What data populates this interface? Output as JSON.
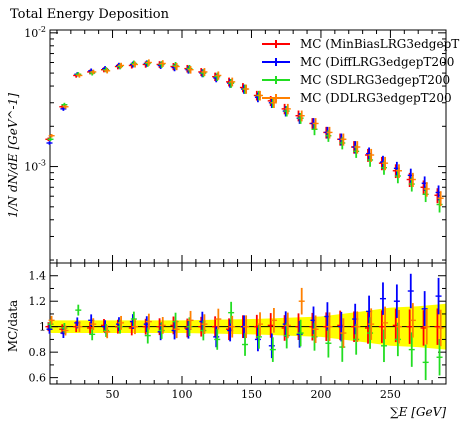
{
  "chart_data": [
    {
      "panel": "main",
      "type": "scatter",
      "title": "Total Energy Deposition",
      "ylabel": "1/N dN/dE [GeV^-1]",
      "yscale": "log",
      "xlim": [
        5,
        290
      ],
      "ylim": [
        0.00019,
        0.0105
      ],
      "y_ticks": [
        {
          "value": 0.01,
          "label": "10^-2"
        },
        {
          "value": 0.001,
          "label": "10^-3"
        }
      ],
      "legend_position": "top-right",
      "series": [
        {
          "name": "MC (MinBiasLRG3edgepT",
          "color": "#ff0000",
          "x": [
            5,
            15,
            25,
            35,
            45,
            55,
            65,
            75,
            85,
            95,
            105,
            115,
            125,
            135,
            145,
            155,
            165,
            175,
            185,
            195,
            205,
            215,
            225,
            235,
            245,
            255,
            265,
            275,
            285
          ],
          "y": [
            0.0016,
            0.0028,
            0.0048,
            0.0051,
            0.0053,
            0.0056,
            0.0057,
            0.0058,
            0.0058,
            0.0056,
            0.0054,
            0.0051,
            0.0047,
            0.0043,
            0.0039,
            0.0034,
            0.0031,
            0.0027,
            0.0024,
            0.0021,
            0.0018,
            0.0016,
            0.0014,
            0.00122,
            0.00106,
            0.00093,
            0.0008,
            0.0007,
            0.00061
          ]
        },
        {
          "name": "MC (DiffLRG3edgepT200",
          "color": "#0000ff",
          "x": [
            5,
            15,
            25,
            35,
            45,
            55,
            65,
            75,
            85,
            95,
            105,
            115,
            125,
            135,
            145,
            155,
            165,
            175,
            185,
            195,
            205,
            215,
            225,
            235,
            245,
            255,
            265,
            275,
            285
          ],
          "y": [
            0.0015,
            0.0027,
            0.0049,
            0.0052,
            0.0054,
            0.0057,
            0.0058,
            0.0059,
            0.0057,
            0.0055,
            0.0053,
            0.005,
            0.0046,
            0.0042,
            0.0038,
            0.0033,
            0.003,
            0.0026,
            0.0023,
            0.0021,
            0.0018,
            0.0016,
            0.0014,
            0.00125,
            0.00108,
            0.00097,
            0.00086,
            0.00075,
            0.00064
          ]
        },
        {
          "name": "MC (SDLRG3edgepT200",
          "color": "#22dd22",
          "x": [
            5,
            15,
            25,
            35,
            45,
            55,
            65,
            75,
            85,
            95,
            105,
            115,
            125,
            135,
            145,
            155,
            165,
            175,
            185,
            195,
            205,
            215,
            225,
            235,
            245,
            255,
            265,
            275,
            285
          ],
          "y": [
            0.0016,
            0.0029,
            0.0049,
            0.005,
            0.0053,
            0.0056,
            0.0059,
            0.0059,
            0.0058,
            0.0057,
            0.0054,
            0.005,
            0.0047,
            0.0042,
            0.0038,
            0.0034,
            0.003,
            0.0026,
            0.0023,
            0.0019,
            0.0017,
            0.0015,
            0.0013,
            0.00112,
            0.00098,
            0.00085,
            0.00074,
            0.00062,
            0.00052
          ]
        },
        {
          "name": "MC (DDLRG3edgepT200",
          "color": "#ff8000",
          "x": [
            5,
            15,
            25,
            35,
            45,
            55,
            65,
            75,
            85,
            95,
            105,
            115,
            125,
            135,
            145,
            155,
            165,
            175,
            185,
            195,
            205,
            215,
            225,
            235,
            245,
            255,
            265,
            275,
            285
          ],
          "y": [
            0.0017,
            0.0028,
            0.0048,
            0.0051,
            0.0052,
            0.0057,
            0.0058,
            0.006,
            0.0059,
            0.0056,
            0.0053,
            0.0051,
            0.0048,
            0.0043,
            0.0038,
            0.0034,
            0.003,
            0.0027,
            0.0024,
            0.0021,
            0.0018,
            0.0016,
            0.0014,
            0.00122,
            0.00106,
            0.00093,
            0.0008,
            0.00068,
            0.00058
          ]
        }
      ]
    },
    {
      "panel": "ratio",
      "type": "scatter",
      "xlabel": "∑E [GeV]",
      "ylabel": "MC/data",
      "xlim": [
        5,
        290
      ],
      "ylim": [
        0.55,
        1.5
      ],
      "x_ticks": [
        50,
        100,
        150,
        200,
        250
      ],
      "y_ticks": [
        {
          "value": 0.6,
          "label": "0.6"
        },
        {
          "value": 0.8,
          "label": "0.8"
        },
        {
          "value": 1.0,
          "label": "1"
        },
        {
          "value": 1.2,
          "label": "1.2"
        },
        {
          "value": 1.4,
          "label": "1.4"
        }
      ],
      "band_color": "#ffff00",
      "band": {
        "x": [
          5,
          100,
          150,
          200,
          230,
          250,
          270,
          290
        ],
        "low": [
          0.95,
          0.95,
          0.94,
          0.92,
          0.88,
          0.85,
          0.84,
          0.82
        ],
        "high": [
          1.05,
          1.05,
          1.06,
          1.08,
          1.12,
          1.15,
          1.16,
          1.18
        ]
      },
      "series": [
        {
          "name": "MC (MinBiasLRG3edgepT",
          "color": "#ff0000",
          "x": [
            5,
            15,
            25,
            35,
            45,
            55,
            65,
            75,
            85,
            95,
            105,
            115,
            125,
            135,
            145,
            155,
            165,
            175,
            185,
            195,
            205,
            215,
            225,
            235,
            245,
            255,
            265,
            275,
            285
          ],
          "y": [
            1.0,
            0.98,
            1.0,
            0.99,
            1.01,
            1.0,
            0.99,
            1.0,
            1.0,
            1.01,
            0.99,
            1.0,
            1.0,
            0.98,
            1.0,
            1.0,
            1.01,
            0.99,
            1.0,
            1.0,
            1.0,
            1.01,
            1.0,
            0.99,
            1.0,
            1.01,
            1.0,
            0.99,
            1.0
          ]
        },
        {
          "name": "MC (DiffLRG3edgepT200",
          "color": "#0000ff",
          "x": [
            5,
            15,
            25,
            35,
            45,
            55,
            65,
            75,
            85,
            95,
            105,
            115,
            125,
            135,
            145,
            155,
            165,
            175,
            185,
            195,
            205,
            215,
            225,
            235,
            245,
            255,
            265,
            275,
            285
          ],
          "y": [
            0.98,
            0.95,
            1.03,
            1.05,
            1.0,
            1.02,
            1.04,
            1.02,
            0.96,
            0.97,
            0.98,
            1.04,
            0.92,
            0.97,
            1.0,
            0.9,
            0.85,
            1.02,
            0.94,
            1.05,
            1.08,
            1.0,
            1.06,
            1.12,
            1.22,
            1.2,
            1.28,
            1.14,
            1.24
          ]
        },
        {
          "name": "MC (SDLRG3edgepT200",
          "color": "#22dd22",
          "x": [
            5,
            15,
            25,
            35,
            45,
            55,
            65,
            75,
            85,
            95,
            105,
            115,
            125,
            135,
            145,
            155,
            165,
            175,
            185,
            195,
            205,
            215,
            225,
            235,
            245,
            255,
            265,
            275,
            285
          ],
          "y": [
            1.02,
            0.99,
            1.13,
            0.94,
            0.97,
            1.0,
            1.06,
            0.93,
            0.97,
            1.04,
            1.0,
            0.97,
            0.9,
            1.11,
            0.86,
            0.92,
            0.82,
            0.93,
            0.95,
            0.92,
            0.87,
            0.84,
            0.9,
            0.95,
            0.85,
            0.9,
            0.82,
            0.72,
            0.76
          ]
        },
        {
          "name": "MC (DDLRG3edgepT200",
          "color": "#ff8000",
          "x": [
            5,
            15,
            25,
            35,
            45,
            55,
            65,
            75,
            85,
            95,
            105,
            115,
            125,
            135,
            145,
            155,
            165,
            175,
            185,
            195,
            205,
            215,
            225,
            235,
            245,
            255,
            265,
            275,
            285
          ],
          "y": [
            1.05,
            0.97,
            1.0,
            1.02,
            0.96,
            1.03,
            1.0,
            1.04,
            1.01,
            0.98,
            1.05,
            1.02,
            1.06,
            1.0,
            1.0,
            1.02,
            1.05,
            1.01,
            1.2,
            0.98,
            1.0,
            0.95,
            1.0,
            1.02,
            1.03,
            1.0,
            1.05,
            1.0,
            0.99
          ]
        }
      ]
    }
  ]
}
